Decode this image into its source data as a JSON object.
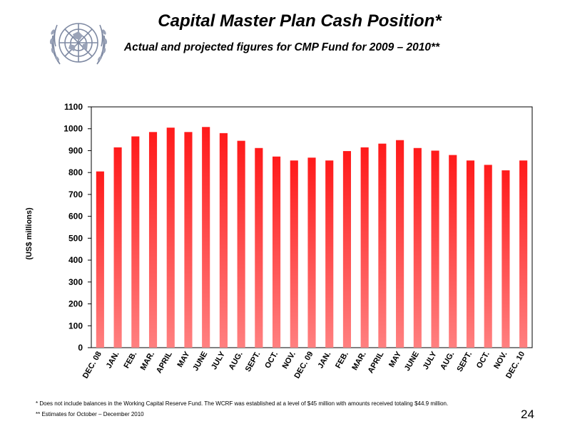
{
  "title": "Capital Master Plan Cash Position*",
  "subtitle": "Actual and projected figures for CMP Fund for 2009 – 2010**",
  "logo": "united-nations-emblem",
  "colors": {
    "bar_top": "#ff1a1a",
    "bar_bottom": "#ff8080",
    "axis": "#000000",
    "grid": "#000000"
  },
  "chart_data": {
    "type": "bar",
    "title": "Capital Master Plan Cash Position*",
    "subtitle": "Actual and projected figures for CMP Fund for 2009 – 2010**",
    "xlabel": "",
    "ylabel": "(US$ millions)",
    "ylim": [
      0,
      1100
    ],
    "yticks": [
      "0",
      "100",
      "200",
      "300",
      "400",
      "500",
      "600",
      "700",
      "800",
      "900",
      "1000",
      "1100"
    ],
    "grid": false,
    "categories": [
      "DEC. 08",
      "JAN.",
      "FEB.",
      "MAR.",
      "APRIL",
      "MAY",
      "JUNE",
      "JULY",
      "AUG.",
      "SEPT.",
      "OCT.",
      "NOV.",
      "DEC. 09",
      "JAN.",
      "FEB.",
      "MAR.",
      "APRIL",
      "MAY",
      "JUNE",
      "JULY",
      "AUG.",
      "SEPT.",
      "OCT.",
      "NOV.",
      "DEC. 10"
    ],
    "values": [
      805,
      915,
      965,
      985,
      1005,
      985,
      1008,
      980,
      945,
      912,
      873,
      855,
      868,
      855,
      898,
      915,
      932,
      948,
      912,
      900,
      880,
      855,
      835,
      810,
      855
    ]
  },
  "footnotes": {
    "note1": "* Does not include balances in the Working Capital Reserve Fund. The WCRF was established at a level of $45 million with amounts received totaling $44.9 million.",
    "note2": "** Estimates for October – December 2010"
  },
  "page_number": "24"
}
